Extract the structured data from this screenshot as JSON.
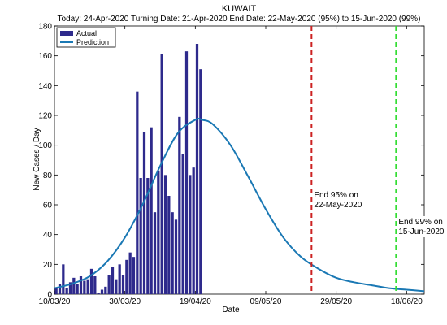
{
  "chart_data": {
    "type": "bar",
    "title": "KUWAIT",
    "subtitle": "Today: 24-Apr-2020  Turning Date: 21-Apr-2020  End Date: 22-May-2020 (95%) to 15-Jun-2020 (99%)",
    "xlabel": "Date",
    "ylabel": "New Cases / Day",
    "x_start": "2020-03-10",
    "x_end": "2020-06-23",
    "ylim": [
      0,
      180
    ],
    "yticks": [
      0,
      20,
      40,
      60,
      80,
      100,
      120,
      140,
      160,
      180
    ],
    "xtick_dates": [
      "2020-03-10",
      "2020-03-30",
      "2020-04-19",
      "2020-05-09",
      "2020-05-29",
      "2020-06-18"
    ],
    "xtick_labels": [
      "10/03/20",
      "30/03/20",
      "19/04/20",
      "09/05/20",
      "29/05/20",
      "18/06/20"
    ],
    "grid": false,
    "legend_location": "top-left",
    "series": [
      {
        "name": "Actual",
        "kind": "bar",
        "color": "#2e2a8c",
        "points": [
          [
            "2020-03-10",
            4
          ],
          [
            "2020-03-11",
            7
          ],
          [
            "2020-03-12",
            20
          ],
          [
            "2020-03-13",
            4
          ],
          [
            "2020-03-14",
            8
          ],
          [
            "2020-03-15",
            11
          ],
          [
            "2020-03-16",
            7
          ],
          [
            "2020-03-17",
            12
          ],
          [
            "2020-03-18",
            9
          ],
          [
            "2020-03-19",
            10
          ],
          [
            "2020-03-20",
            17
          ],
          [
            "2020-03-21",
            12
          ],
          [
            "2020-03-22",
            1
          ],
          [
            "2020-03-23",
            3
          ],
          [
            "2020-03-24",
            5
          ],
          [
            "2020-03-25",
            13
          ],
          [
            "2020-03-26",
            18
          ],
          [
            "2020-03-27",
            10
          ],
          [
            "2020-03-28",
            20
          ],
          [
            "2020-03-29",
            13
          ],
          [
            "2020-03-30",
            23
          ],
          [
            "2020-03-31",
            28
          ],
          [
            "2020-04-01",
            25
          ],
          [
            "2020-04-02",
            136
          ],
          [
            "2020-04-03",
            78
          ],
          [
            "2020-04-04",
            109
          ],
          [
            "2020-04-05",
            78
          ],
          [
            "2020-04-06",
            112
          ],
          [
            "2020-04-07",
            55
          ],
          [
            "2020-04-08",
            83
          ],
          [
            "2020-04-09",
            161
          ],
          [
            "2020-04-10",
            80
          ],
          [
            "2020-04-11",
            66
          ],
          [
            "2020-04-12",
            55
          ],
          [
            "2020-04-13",
            50
          ],
          [
            "2020-04-14",
            119
          ],
          [
            "2020-04-15",
            94
          ],
          [
            "2020-04-16",
            163
          ],
          [
            "2020-04-17",
            80
          ],
          [
            "2020-04-18",
            85
          ],
          [
            "2020-04-19",
            168
          ],
          [
            "2020-04-20",
            151
          ]
        ]
      },
      {
        "name": "Prediction",
        "kind": "line",
        "color": "#1a78b4",
        "points": [
          [
            "2020-03-10",
            4
          ],
          [
            "2020-03-15",
            7
          ],
          [
            "2020-03-20",
            12
          ],
          [
            "2020-03-25",
            22
          ],
          [
            "2020-03-30",
            38
          ],
          [
            "2020-04-04",
            60
          ],
          [
            "2020-04-09",
            86
          ],
          [
            "2020-04-14",
            108
          ],
          [
            "2020-04-19",
            117
          ],
          [
            "2020-04-21",
            117
          ],
          [
            "2020-04-24",
            114
          ],
          [
            "2020-04-29",
            100
          ],
          [
            "2020-05-04",
            79
          ],
          [
            "2020-05-09",
            57
          ],
          [
            "2020-05-14",
            38
          ],
          [
            "2020-05-19",
            25
          ],
          [
            "2020-05-24",
            17
          ],
          [
            "2020-05-29",
            11
          ],
          [
            "2020-06-03",
            8
          ],
          [
            "2020-06-08",
            6
          ],
          [
            "2020-06-13",
            4
          ],
          [
            "2020-06-18",
            3
          ],
          [
            "2020-06-23",
            2
          ]
        ]
      }
    ],
    "vlines": [
      {
        "date": "2020-05-22",
        "color": "#cc2222",
        "label_line1": "End 95% on",
        "label_line2": "22-May-2020"
      },
      {
        "date": "2020-06-15",
        "color": "#33dd33",
        "label_line1": "End 99% on",
        "label_line2": "15-Jun-2020"
      }
    ]
  }
}
